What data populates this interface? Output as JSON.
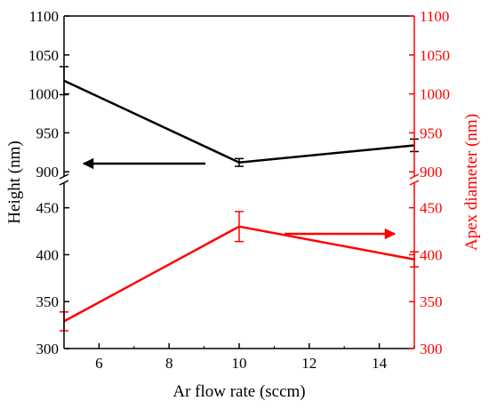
{
  "chart_data": {
    "type": "line",
    "xlabel": "Ar flow rate (sccm)",
    "ylabel_left": "Height (nm)",
    "ylabel_right": "Apex diameter (nm)",
    "xlim": [
      5,
      15
    ],
    "x_ticks": [
      6,
      8,
      10,
      12,
      14
    ],
    "y_ticks": [
      300,
      350,
      400,
      450,
      900,
      950,
      1000,
      1050,
      1100
    ],
    "axis_break": {
      "lower_range": [
        300,
        480
      ],
      "upper_range": [
        890,
        1100
      ]
    },
    "series": [
      {
        "axis": "left",
        "color": "#000000",
        "x": [
          5,
          10,
          15
        ],
        "y": [
          1017,
          912,
          934
        ],
        "error": [
          18,
          5,
          8
        ]
      },
      {
        "axis": "right",
        "color": "#ff0000",
        "x": [
          5,
          10,
          15
        ],
        "y": [
          329,
          430,
          395
        ],
        "error": [
          10,
          16,
          8
        ]
      }
    ],
    "arrows": [
      {
        "series": 0,
        "direction": "left",
        "color": "#000000"
      },
      {
        "series": 1,
        "direction": "right",
        "color": "#ff0000"
      }
    ]
  }
}
